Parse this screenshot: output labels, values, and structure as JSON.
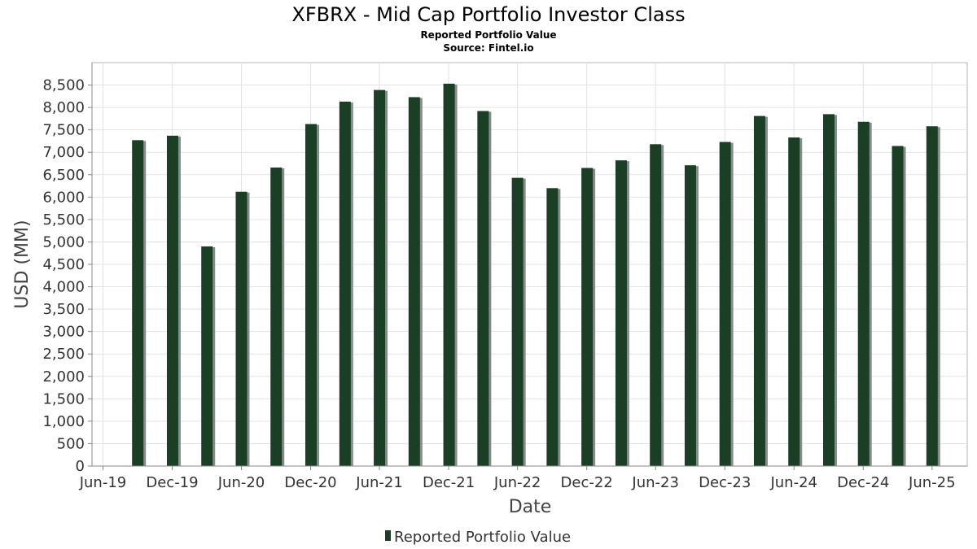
{
  "chart_data": {
    "type": "bar",
    "title": "XFBRX - Mid Cap Portfolio Investor Class",
    "subtitle_lines": [
      "Reported Portfolio Value",
      "Source: Fintel.io"
    ],
    "xlabel": "Date",
    "ylabel": "USD (MM)",
    "x_ticks": [
      "Jun-19",
      "Dec-19",
      "Jun-20",
      "Dec-20",
      "Jun-21",
      "Dec-21",
      "Jun-22",
      "Dec-22",
      "Jun-23",
      "Dec-23",
      "Jun-24",
      "Dec-24",
      "Jun-25"
    ],
    "y_ticks": [
      "0",
      "500",
      "1,000",
      "1,500",
      "2,000",
      "2,500",
      "3,000",
      "3,500",
      "4,000",
      "4,500",
      "5,000",
      "5,500",
      "6,000",
      "6,500",
      "7,000",
      "7,500",
      "8,000",
      "8,500"
    ],
    "ylim": [
      0,
      9000
    ],
    "series": [
      {
        "name": "Reported Portfolio Value",
        "color": "#1a3f24",
        "points": [
          {
            "date": "2019-09-30",
            "value": 7270
          },
          {
            "date": "2019-12-31",
            "value": 7370
          },
          {
            "date": "2020-03-31",
            "value": 4900
          },
          {
            "date": "2020-06-30",
            "value": 6120
          },
          {
            "date": "2020-09-30",
            "value": 6660
          },
          {
            "date": "2020-12-31",
            "value": 7630
          },
          {
            "date": "2021-03-31",
            "value": 8130
          },
          {
            "date": "2021-06-30",
            "value": 8390
          },
          {
            "date": "2021-09-30",
            "value": 8230
          },
          {
            "date": "2021-12-31",
            "value": 8530
          },
          {
            "date": "2022-03-31",
            "value": 7920
          },
          {
            "date": "2022-06-30",
            "value": 6430
          },
          {
            "date": "2022-09-30",
            "value": 6200
          },
          {
            "date": "2022-12-31",
            "value": 6650
          },
          {
            "date": "2023-03-31",
            "value": 6820
          },
          {
            "date": "2023-06-30",
            "value": 7180
          },
          {
            "date": "2023-09-30",
            "value": 6710
          },
          {
            "date": "2023-12-31",
            "value": 7230
          },
          {
            "date": "2024-03-31",
            "value": 7810
          },
          {
            "date": "2024-06-30",
            "value": 7330
          },
          {
            "date": "2024-09-30",
            "value": 7850
          },
          {
            "date": "2024-12-31",
            "value": 7680
          },
          {
            "date": "2025-03-31",
            "value": 7140
          },
          {
            "date": "2025-06-30",
            "value": 7580
          }
        ]
      }
    ],
    "grid": true,
    "legend": "bottom-center"
  }
}
